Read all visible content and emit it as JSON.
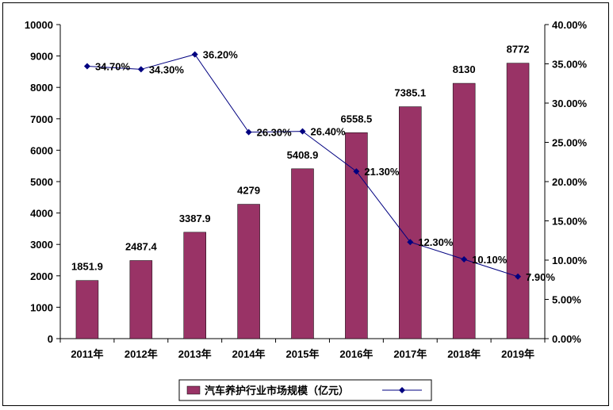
{
  "chart_data": {
    "type": "bar+line",
    "categories": [
      "2011年",
      "2012年",
      "2013年",
      "2014年",
      "2015年",
      "2016年",
      "2017年",
      "2018年",
      "2019年"
    ],
    "series": [
      {
        "name": "汽车养护行业市场规模（亿元）",
        "type": "bar",
        "axis": "left",
        "values": [
          1851.9,
          2487.4,
          3387.9,
          4279,
          5408.9,
          6558.5,
          7385.1,
          8130,
          8772
        ],
        "labels": [
          "1851.9",
          "2487.4",
          "3387.9",
          "4279",
          "5408.9",
          "6558.5",
          "7385.1",
          "8130",
          "8772"
        ]
      },
      {
        "type": "line",
        "axis": "right",
        "values": [
          34.7,
          34.3,
          36.2,
          26.3,
          26.4,
          21.3,
          12.3,
          10.1,
          7.9
        ],
        "labels": [
          "34.70%",
          "34.30%",
          "36.20%",
          "26.30%",
          "26.40%",
          "21.30%",
          "12.30%",
          "10.10%",
          "7.90%"
        ]
      }
    ],
    "y_left": {
      "range": [
        0,
        10000
      ],
      "ticks": [
        "0",
        "1000",
        "2000",
        "3000",
        "4000",
        "5000",
        "6000",
        "7000",
        "8000",
        "9000",
        "10000"
      ]
    },
    "y_right": {
      "range": [
        0,
        40
      ],
      "ticks": [
        "0.00%",
        "5.00%",
        "10.00%",
        "15.00%",
        "20.00%",
        "25.00%",
        "30.00%",
        "35.00%",
        "40.00%"
      ]
    },
    "grid": false,
    "legend": "bottom",
    "colors": {
      "bar": "#993366",
      "line": "#000080"
    }
  }
}
